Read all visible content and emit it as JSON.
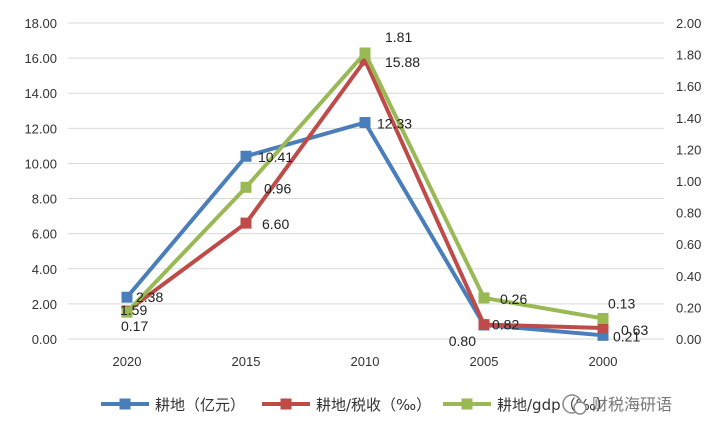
{
  "chart_data": {
    "type": "line",
    "categories": [
      "2020",
      "2015",
      "2010",
      "2005",
      "2000"
    ],
    "series": [
      {
        "name": "耕地（亿元）",
        "axis": "left",
        "color": "#4a7ebb",
        "values": [
          2.38,
          10.41,
          12.33,
          0.8,
          0.21
        ],
        "labels": [
          "2.38",
          "10.41",
          "12.33",
          "0.80",
          "0.21"
        ]
      },
      {
        "name": "耕地/税收（‰）",
        "axis": "left",
        "color": "#be4b48",
        "values": [
          1.59,
          6.6,
          15.88,
          0.82,
          0.63
        ],
        "labels": [
          "1.59",
          "6.60",
          "15.88",
          "0.82",
          "0.63"
        ]
      },
      {
        "name": "耕地/gdp（‰）",
        "axis": "right",
        "color": "#98b954",
        "values": [
          0.17,
          0.96,
          1.81,
          0.26,
          0.13
        ],
        "labels": [
          "0.17",
          "0.96",
          "1.81",
          "0.26",
          "0.13"
        ]
      }
    ],
    "y_left": {
      "min": 0,
      "max": 18,
      "step": 2,
      "ticks": [
        "0.00",
        "2.00",
        "4.00",
        "6.00",
        "8.00",
        "10.00",
        "12.00",
        "14.00",
        "16.00",
        "18.00"
      ]
    },
    "y_right": {
      "min": 0,
      "max": 2,
      "step": 0.2,
      "ticks": [
        "0.00",
        "0.20",
        "0.40",
        "0.60",
        "0.80",
        "1.00",
        "1.20",
        "1.40",
        "1.60",
        "1.80",
        "2.00"
      ]
    },
    "grid": true,
    "legend_position": "bottom"
  },
  "watermark": {
    "text": "财税海研语"
  }
}
